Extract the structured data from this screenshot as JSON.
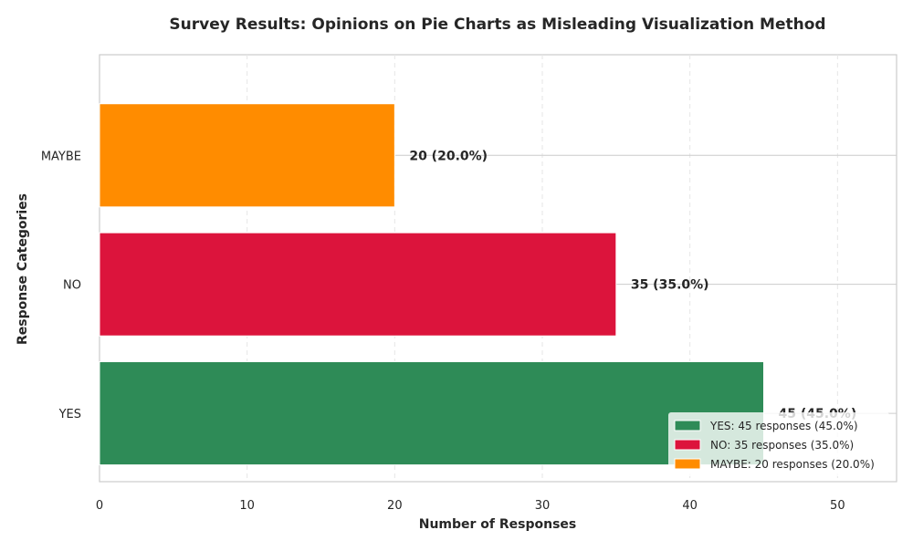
{
  "chart_data": {
    "type": "bar",
    "orientation": "horizontal",
    "title": "Survey Results: Opinions on Pie Charts as Misleading Visualization Method",
    "xlabel": "Number of Responses",
    "ylabel": "Response Categories",
    "categories": [
      "YES",
      "NO",
      "MAYBE"
    ],
    "values": [
      45,
      35,
      20
    ],
    "percentages": [
      45.0,
      35.0,
      20.0
    ],
    "data_labels": [
      "45 (45.0%)",
      "35 (35.0%)",
      "20 (20.0%)"
    ],
    "colors": [
      "#2e8b57",
      "#dc143c",
      "#ff8c00"
    ],
    "xlim": [
      0,
      54
    ],
    "xticks": [
      0,
      10,
      20,
      30,
      40,
      50
    ],
    "grid": true,
    "legend_position": "lower-right",
    "legend": [
      "YES: 45 responses (45.0%)",
      "NO: 35 responses (35.0%)",
      "MAYBE: 20 responses (20.0%)"
    ]
  }
}
